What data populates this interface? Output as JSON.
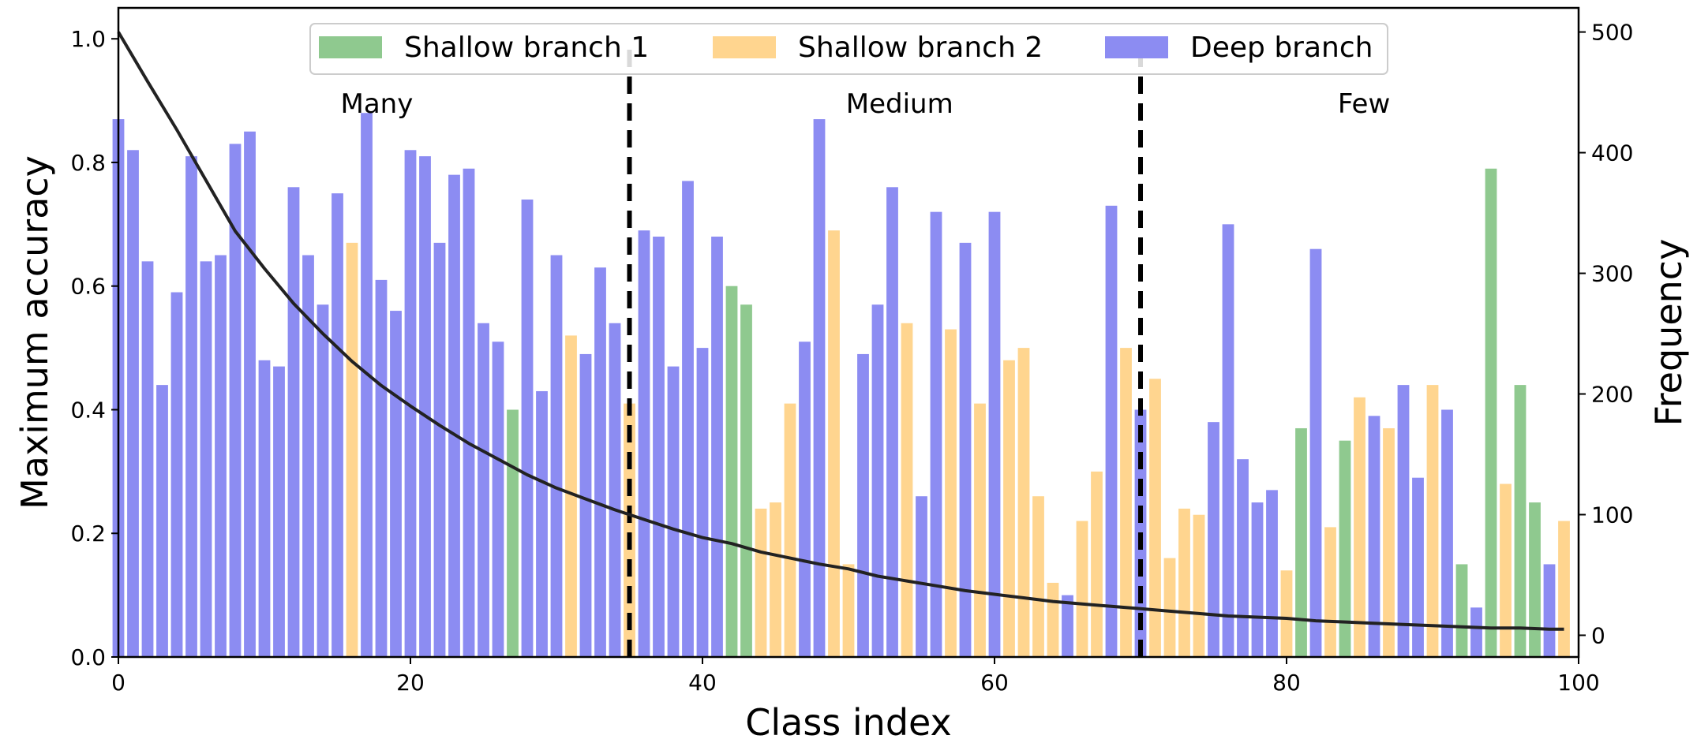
{
  "chart_data": {
    "type": "bar",
    "title": "",
    "xlabel": "Class index",
    "ylabel": "Maximum accuracy",
    "y2label": "Frequency",
    "xlim": [
      0,
      100
    ],
    "ylim": [
      0,
      1.05
    ],
    "y2lim": [
      -18,
      520
    ],
    "x_ticks": [
      0,
      20,
      40,
      60,
      80,
      100
    ],
    "y_ticks": [
      0.0,
      0.2,
      0.4,
      0.6,
      0.8,
      1.0
    ],
    "y2_ticks": [
      0,
      100,
      200,
      300,
      400,
      500
    ],
    "x_tick_labels": [
      "0",
      "20",
      "40",
      "60",
      "80",
      "100"
    ],
    "y_tick_labels": [
      "0.0",
      "0.2",
      "0.4",
      "0.6",
      "0.8",
      "1.0"
    ],
    "y2_tick_labels": [
      "0",
      "100",
      "200",
      "300",
      "400",
      "500"
    ],
    "grid": false,
    "legend_position": "top-center",
    "series": [
      {
        "name": "Shallow branch 1",
        "color": "#8fc98f",
        "key": "s1"
      },
      {
        "name": "Shallow branch 2",
        "color": "#ffd58f",
        "key": "s2"
      },
      {
        "name": "Deep branch",
        "color": "#8c8cf2",
        "key": "d"
      }
    ],
    "categories": [
      0,
      1,
      2,
      3,
      4,
      5,
      6,
      7,
      8,
      9,
      10,
      11,
      12,
      13,
      14,
      15,
      16,
      17,
      18,
      19,
      20,
      21,
      22,
      23,
      24,
      25,
      26,
      27,
      28,
      29,
      30,
      31,
      32,
      33,
      34,
      35,
      36,
      37,
      38,
      39,
      40,
      41,
      42,
      43,
      44,
      45,
      46,
      47,
      48,
      49,
      50,
      51,
      52,
      53,
      54,
      55,
      56,
      57,
      58,
      59,
      60,
      61,
      62,
      63,
      64,
      65,
      66,
      67,
      68,
      69,
      70,
      71,
      72,
      73,
      74,
      75,
      76,
      77,
      78,
      79,
      80,
      81,
      82,
      83,
      84,
      85,
      86,
      87,
      88,
      89,
      90,
      91,
      92,
      93,
      94,
      95,
      96,
      97,
      98,
      99
    ],
    "bar_values": [
      0.87,
      0.82,
      0.64,
      0.44,
      0.59,
      0.81,
      0.64,
      0.65,
      0.83,
      0.85,
      0.48,
      0.47,
      0.76,
      0.65,
      0.57,
      0.75,
      0.67,
      0.88,
      0.61,
      0.56,
      0.82,
      0.81,
      0.67,
      0.78,
      0.79,
      0.54,
      0.51,
      0.4,
      0.74,
      0.43,
      0.65,
      0.52,
      0.49,
      0.63,
      0.54,
      0.41,
      0.69,
      0.68,
      0.47,
      0.77,
      0.5,
      0.68,
      0.6,
      0.57,
      0.24,
      0.25,
      0.41,
      0.51,
      0.87,
      0.69,
      0.15,
      0.49,
      0.57,
      0.76,
      0.54,
      0.26,
      0.72,
      0.53,
      0.67,
      0.41,
      0.72,
      0.48,
      0.5,
      0.26,
      0.12,
      0.1,
      0.22,
      0.3,
      0.73,
      0.5,
      0.4,
      0.45,
      0.16,
      0.24,
      0.23,
      0.38,
      0.7,
      0.32,
      0.25,
      0.27,
      0.14,
      0.37,
      0.66,
      0.21,
      0.35,
      0.42,
      0.39,
      0.37,
      0.44,
      0.29,
      0.44,
      0.4,
      0.15,
      0.08,
      0.79,
      0.28,
      0.44,
      0.25,
      0.15,
      0.22
    ],
    "bar_branch": [
      "d",
      "d",
      "d",
      "d",
      "d",
      "d",
      "d",
      "d",
      "d",
      "d",
      "d",
      "d",
      "d",
      "d",
      "d",
      "d",
      "s2",
      "d",
      "d",
      "d",
      "d",
      "d",
      "d",
      "d",
      "d",
      "d",
      "d",
      "s1",
      "d",
      "d",
      "d",
      "s2",
      "d",
      "d",
      "d",
      "s2",
      "d",
      "d",
      "d",
      "d",
      "d",
      "d",
      "s1",
      "s1",
      "s2",
      "s2",
      "s2",
      "d",
      "d",
      "s2",
      "s2",
      "d",
      "d",
      "d",
      "s2",
      "d",
      "d",
      "s2",
      "d",
      "s2",
      "d",
      "s2",
      "s2",
      "s2",
      "s2",
      "d",
      "s2",
      "s2",
      "d",
      "s2",
      "d",
      "s2",
      "s2",
      "s2",
      "s2",
      "d",
      "d",
      "d",
      "d",
      "d",
      "s2",
      "s1",
      "d",
      "s2",
      "s1",
      "s2",
      "d",
      "s2",
      "d",
      "d",
      "s2",
      "d",
      "s1",
      "d",
      "s1",
      "s2",
      "s1",
      "s1",
      "d",
      "s2"
    ],
    "frequency_line": {
      "x": [
        0,
        2,
        4,
        6,
        8,
        10,
        12,
        14,
        16,
        18,
        20,
        22,
        24,
        26,
        28,
        30,
        32,
        34,
        36,
        38,
        40,
        42,
        44,
        46,
        48,
        50,
        52,
        54,
        56,
        58,
        60,
        62,
        64,
        66,
        68,
        70,
        72,
        74,
        76,
        78,
        80,
        82,
        84,
        86,
        88,
        90,
        92,
        94,
        96,
        98,
        99
      ],
      "y": [
        500,
        459,
        419,
        377,
        335,
        304,
        275,
        250,
        227,
        207,
        190,
        174,
        159,
        146,
        133,
        122,
        113,
        104,
        96,
        88,
        81,
        76,
        69,
        64,
        59,
        55,
        49,
        45,
        41,
        37,
        34,
        31,
        28,
        26,
        24,
        22,
        20,
        18,
        16,
        15,
        14,
        12,
        11,
        10,
        9,
        8,
        7,
        6,
        6,
        5,
        5
      ]
    },
    "dividers": [
      35,
      70
    ],
    "regions": [
      {
        "label": "Many",
        "x": 17.7
      },
      {
        "label": "Medium",
        "x": 53.5
      },
      {
        "label": "Few",
        "x": 85.3
      }
    ]
  }
}
